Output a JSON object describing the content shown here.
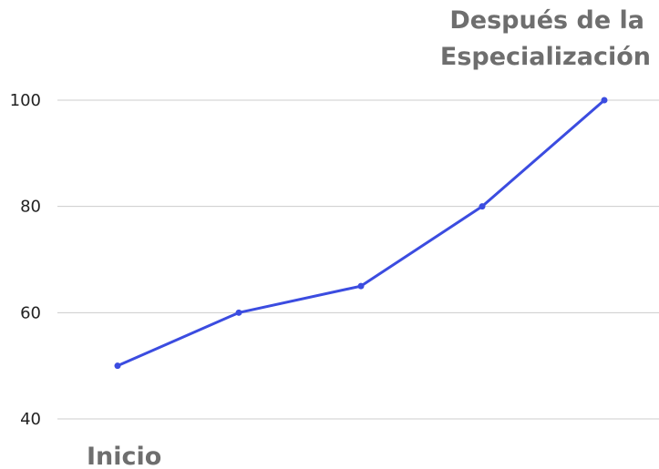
{
  "chart_data": {
    "type": "line",
    "x": [
      1,
      2,
      3,
      4,
      5
    ],
    "series": [
      {
        "values": [
          50,
          60,
          65,
          80,
          100
        ],
        "color": "#3b4ce0"
      }
    ],
    "yticks": [
      "40",
      "60",
      "80",
      "100"
    ],
    "ylim": [
      40,
      100
    ],
    "grid": true,
    "annotations": {
      "start": "Inicio",
      "end_line1": "Después de la",
      "end_line2": "Especialización"
    },
    "colors": {
      "line": "#3b4ce0",
      "grid": "#cccccc",
      "annotation": "#6e6e6e",
      "tick": "#222222"
    }
  }
}
